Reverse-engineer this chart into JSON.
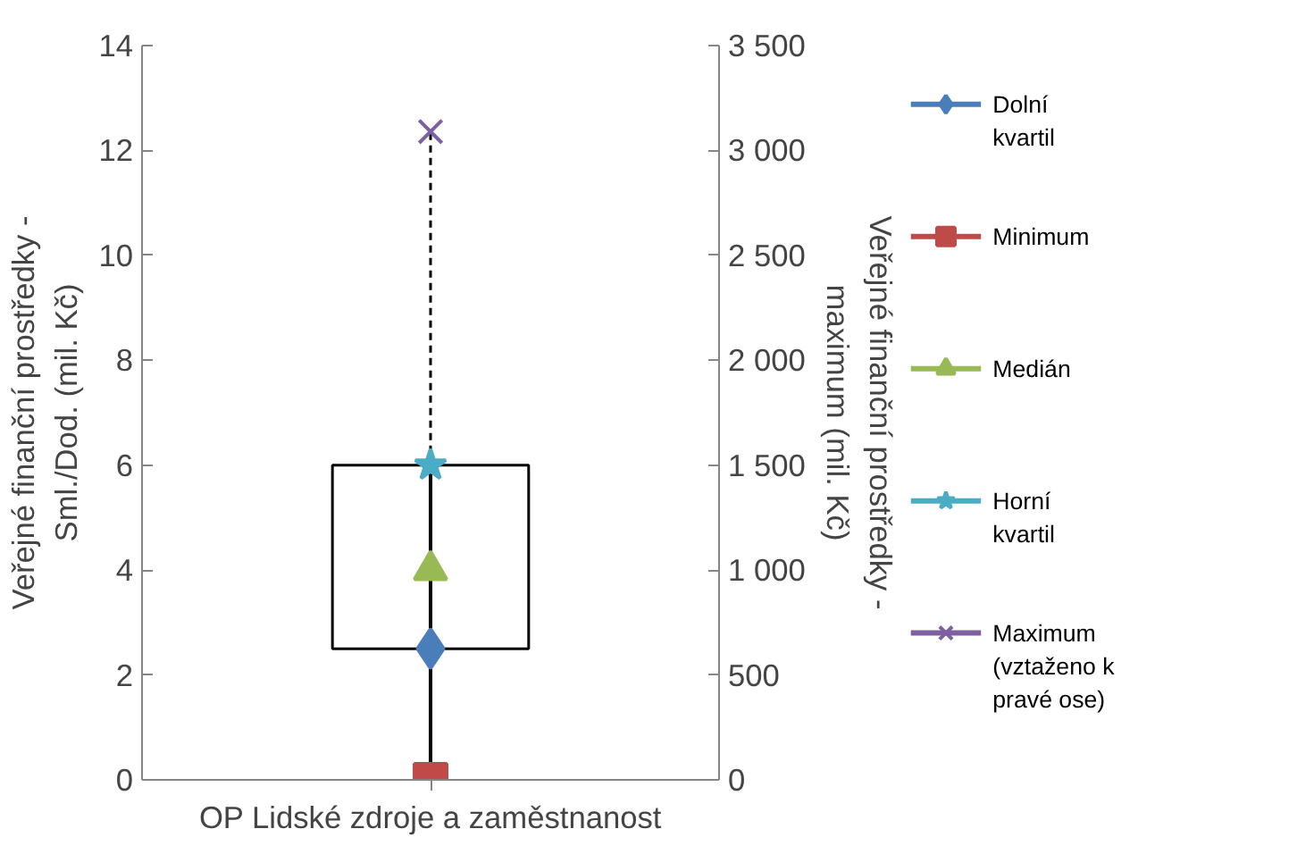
{
  "chart_data": {
    "type": "scatter",
    "categories": [
      "OP Lidské zdroje a zaměstnanost"
    ],
    "ylabel": "Veřejné finanční prostředky - Sml./Dod. (mil. Kč)",
    "y2label": "Veřejné finanční prostředky - maximum (mil. Kč)",
    "ylim": [
      0,
      14
    ],
    "yticks": [
      0,
      2,
      4,
      6,
      8,
      10,
      12,
      14
    ],
    "y2lim": [
      0,
      3500
    ],
    "y2ticks": [
      0,
      {
        "value": 500,
        "label": "500"
      },
      {
        "value": 1000,
        "label": "1 000"
      },
      {
        "value": 1500,
        "label": "1 500"
      },
      {
        "value": 2000,
        "label": "2 000"
      },
      {
        "value": 2500,
        "label": "2 500"
      },
      {
        "value": 3000,
        "label": "3 000"
      },
      {
        "value": 3500,
        "label": "3 500"
      }
    ],
    "series": [
      {
        "name": "Dolní kvartil",
        "color": "#4a7ebb",
        "values": [
          2.5
        ],
        "marker": "diamond"
      },
      {
        "name": "Minimum",
        "color": "#be4b48",
        "values": [
          0
        ],
        "marker": "square"
      },
      {
        "name": "Medián",
        "color": "#98b954",
        "values": [
          4
        ],
        "marker": "triangle"
      },
      {
        "name": "Horní kvartil",
        "color": "#4bacc6",
        "values": [
          6
        ],
        "marker": "star"
      },
      {
        "name": "Maximum (vztaženo k pravé ose)",
        "color": "#7d60a0",
        "values": [
          3090
        ],
        "marker": "cross",
        "axis": "y2"
      }
    ],
    "grid": false,
    "legend": "right"
  }
}
